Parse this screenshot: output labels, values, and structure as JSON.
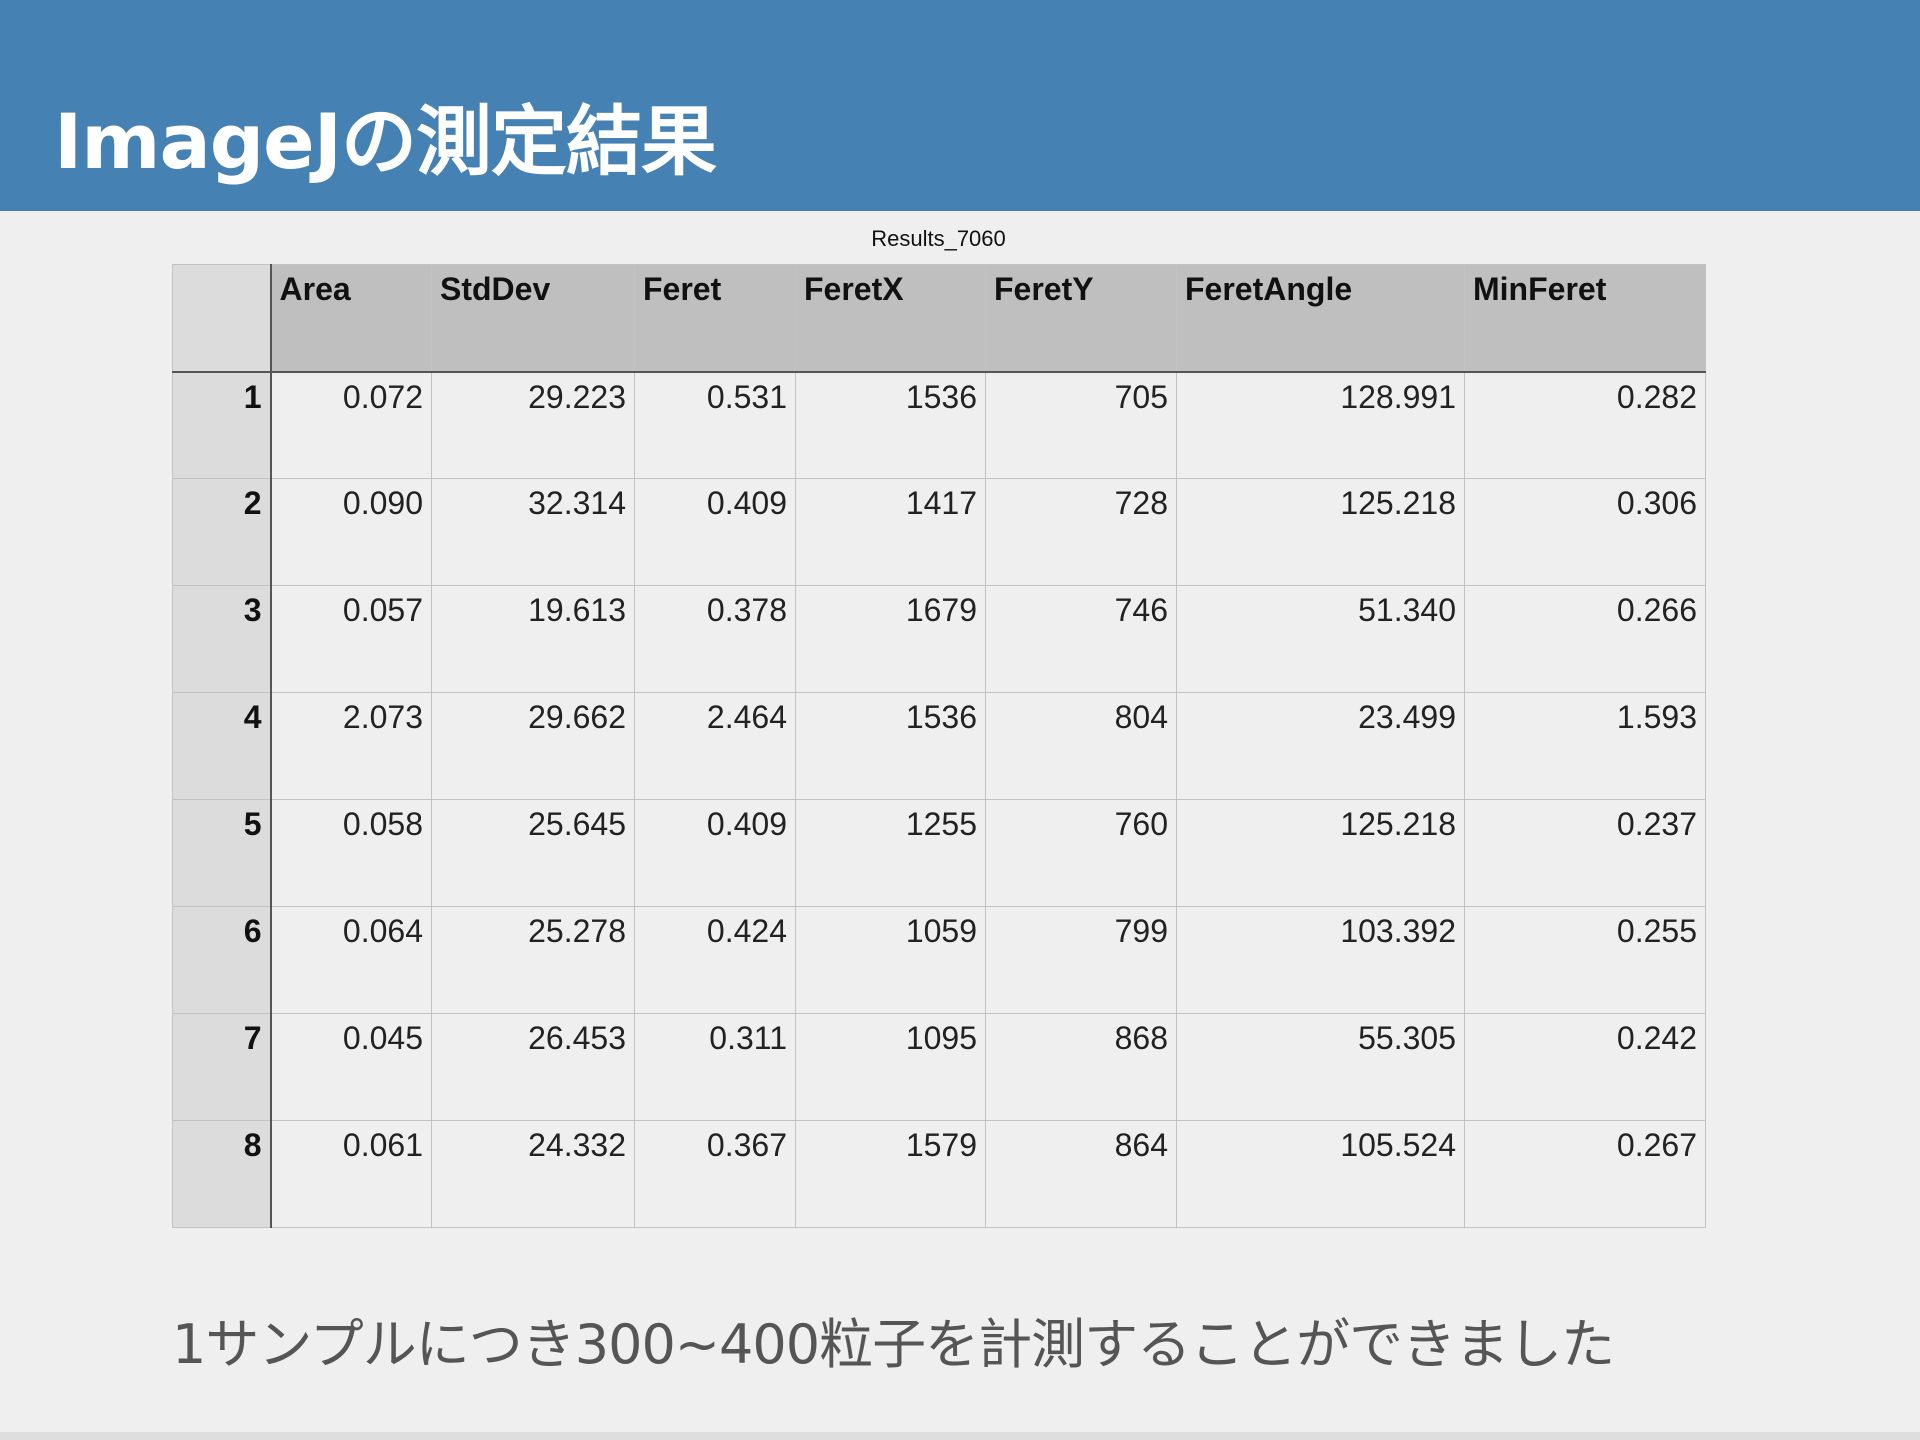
{
  "header": {
    "title": "ImageJの測定結果"
  },
  "table": {
    "caption": "Results_7060",
    "columns": [
      "",
      "Area",
      "StdDev",
      "Feret",
      "FeretX",
      "FeretY",
      "FeretAngle",
      "MinFeret"
    ],
    "rows": [
      [
        "1",
        "0.072",
        "29.223",
        "0.531",
        "1536",
        "705",
        "128.991",
        "0.282"
      ],
      [
        "2",
        "0.090",
        "32.314",
        "0.409",
        "1417",
        "728",
        "125.218",
        "0.306"
      ],
      [
        "3",
        "0.057",
        "19.613",
        "0.378",
        "1679",
        "746",
        "51.340",
        "0.266"
      ],
      [
        "4",
        "2.073",
        "29.662",
        "2.464",
        "1536",
        "804",
        "23.499",
        "1.593"
      ],
      [
        "5",
        "0.058",
        "25.645",
        "0.409",
        "1255",
        "760",
        "125.218",
        "0.237"
      ],
      [
        "6",
        "0.064",
        "25.278",
        "0.424",
        "1059",
        "799",
        "103.392",
        "0.255"
      ],
      [
        "7",
        "0.045",
        "26.453",
        "0.311",
        "1095",
        "868",
        "55.305",
        "0.242"
      ],
      [
        "8",
        "0.061",
        "24.332",
        "0.367",
        "1579",
        "864",
        "105.524",
        "0.267"
      ]
    ]
  },
  "footer": {
    "note": "1サンプルにつき300~400粒子を計測することができました"
  }
}
